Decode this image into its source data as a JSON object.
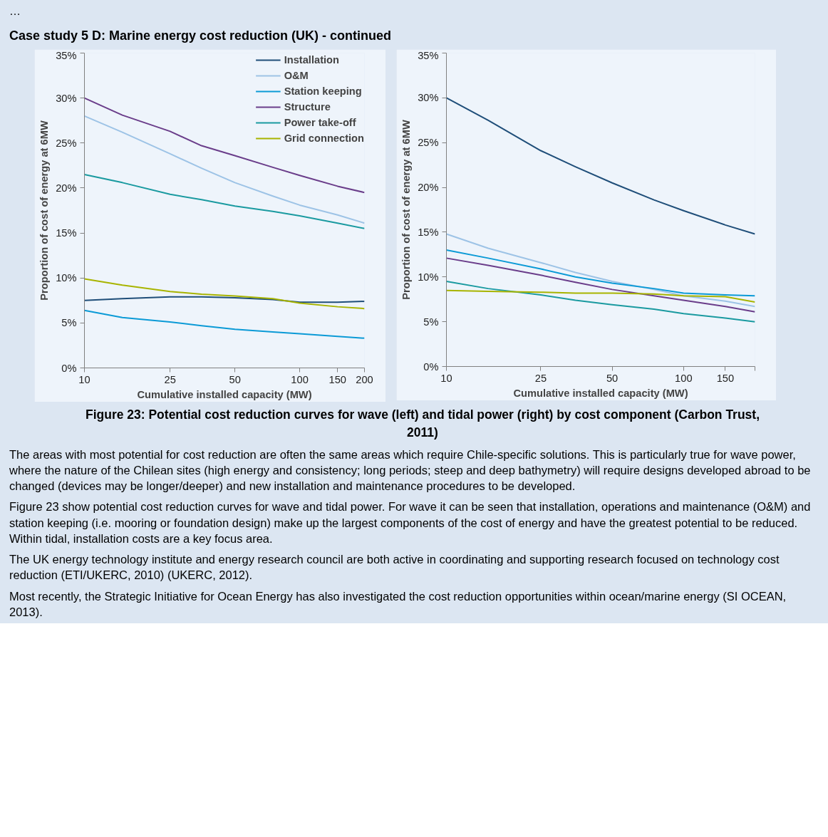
{
  "chart_data": [
    {
      "type": "line",
      "title": "Case study 5 D: Marine energy cost reduction (UK) - continued",
      "annotations": [
        "…"
      ],
      "xlabel": "Cumulative installed capacity (MW)",
      "ylabel": "Proportion of cost of energy at 6MW",
      "log": "x",
      "xlim": [
        10,
        200
      ],
      "xticks": [
        10,
        25,
        50,
        100,
        150,
        200
      ],
      "ylim": [
        0,
        35
      ],
      "yticks": [
        {
          "value": 0,
          "label": "0%"
        },
        {
          "value": 5,
          "label": "5%"
        },
        {
          "value": 10,
          "label": "10%"
        },
        {
          "value": 15,
          "label": "15%"
        },
        {
          "value": 20,
          "label": "20%"
        },
        {
          "value": 25,
          "label": "25%"
        },
        {
          "value": 30,
          "label": "30%"
        },
        {
          "value": 35,
          "label": "35%"
        }
      ],
      "grid": false,
      "legend": "top right",
      "x": [
        10,
        15,
        25,
        35,
        50,
        75,
        100,
        150,
        200
      ],
      "series": [
        {
          "name": "Installation",
          "color": "#1f4e79",
          "values": [
            7.5,
            7.7,
            7.9,
            7.9,
            7.8,
            7.6,
            7.3,
            7.3,
            7.4
          ]
        },
        {
          "name": "O&M",
          "color": "#9dc3e6",
          "values": [
            28,
            26.2,
            23.8,
            22.2,
            20.6,
            19.1,
            18.1,
            17.0,
            16.1
          ]
        },
        {
          "name": "Station keeping",
          "color": "#0b9ad6",
          "values": [
            6.4,
            5.6,
            5.1,
            4.7,
            4.3,
            4.0,
            3.8,
            3.5,
            3.3
          ]
        },
        {
          "name": "Structure",
          "color": "#6a3d8a",
          "values": [
            30,
            28.1,
            26.3,
            24.7,
            23.6,
            22.3,
            21.4,
            20.2,
            19.5
          ]
        },
        {
          "name": "Power take-off",
          "color": "#1a9aa0",
          "values": [
            21.5,
            20.6,
            19.3,
            18.7,
            18.0,
            17.4,
            16.9,
            16.1,
            15.5
          ]
        },
        {
          "name": "Grid connection",
          "color": "#a8b400",
          "values": [
            9.9,
            9.2,
            8.5,
            8.2,
            8.0,
            7.7,
            7.2,
            6.8,
            6.6
          ]
        }
      ]
    },
    {
      "type": "line",
      "xlabel": "Cumulative installed capacity (MW)",
      "ylabel": "Proportion of cost of energy at 6MW",
      "log": "x",
      "xlim": [
        10,
        200
      ],
      "xticks": [
        10,
        25,
        50,
        100,
        150,
        {
          "value": 200,
          "label": null
        }
      ],
      "ylim": [
        0,
        35
      ],
      "yticks": [
        {
          "value": 0,
          "label": "0%"
        },
        {
          "value": 5,
          "label": "5%"
        },
        {
          "value": 10,
          "label": "10%"
        },
        {
          "value": 15,
          "label": "15%"
        },
        {
          "value": 20,
          "label": "20%"
        },
        {
          "value": 25,
          "label": "25%"
        },
        {
          "value": 30,
          "label": "30%"
        },
        {
          "value": 35,
          "label": "35%"
        }
      ],
      "grid": false,
      "x": [
        10,
        15,
        25,
        35,
        50,
        75,
        100,
        150,
        200
      ],
      "series": [
        {
          "color": "#1f4e79",
          "values": [
            30.0,
            27.5,
            24.1,
            22.3,
            20.5,
            18.6,
            17.4,
            15.8,
            14.8
          ]
        },
        {
          "color": "#9dc3e6",
          "values": [
            14.8,
            13.2,
            11.6,
            10.5,
            9.5,
            8.6,
            7.9,
            7.3,
            6.7
          ]
        },
        {
          "color": "#0b9ad6",
          "values": [
            13.0,
            12.1,
            10.9,
            10.0,
            9.3,
            8.7,
            8.2,
            8.0,
            7.9
          ]
        },
        {
          "color": "#6a3d8a",
          "values": [
            12.1,
            11.3,
            10.2,
            9.4,
            8.6,
            7.9,
            7.4,
            6.7,
            6.1
          ]
        },
        {
          "color": "#1a9aa0",
          "values": [
            9.5,
            8.7,
            8.0,
            7.4,
            6.9,
            6.4,
            5.9,
            5.4,
            5.0
          ]
        },
        {
          "color": "#a8b400",
          "values": [
            8.5,
            8.4,
            8.3,
            8.2,
            8.2,
            8.1,
            7.9,
            7.8,
            7.2
          ]
        }
      ],
      "annotations": [
        "Figure 23: Potential cost reduction curves for wave (left) and tidal power (right) by cost component (Carbon Trust, 2011)",
        "The areas with most potential for cost reduction are often the same areas which require Chile-specific solutions. This is particularly true for wave power, where the nature of the Chilean sites (high energy and consistency; long periods; steep and deep bathymetry) will require designs developed abroad to be changed (devices may be longer/deeper) and new installation and maintenance procedures to be developed.",
        "Figure 23 show potential cost reduction curves for wave and tidal power. For wave it can be seen that installation, operations and maintenance (O&M) and station keeping (i.e. mooring or foundation design) make up the largest components of the cost of energy and have the greatest potential to be reduced. Within tidal, installation costs are a key focus area.",
        "The UK energy technology institute and energy research council are both active in coordinating and supporting research focused on technology cost reduction (ETI/UKERC, 2010) (UKERC, 2012).",
        "Most recently, the Strategic Initiative for Ocean Energy has also investigated the cost reduction opportunities within ocean/marine energy (SI OCEAN, 2013)."
      ]
    }
  ]
}
